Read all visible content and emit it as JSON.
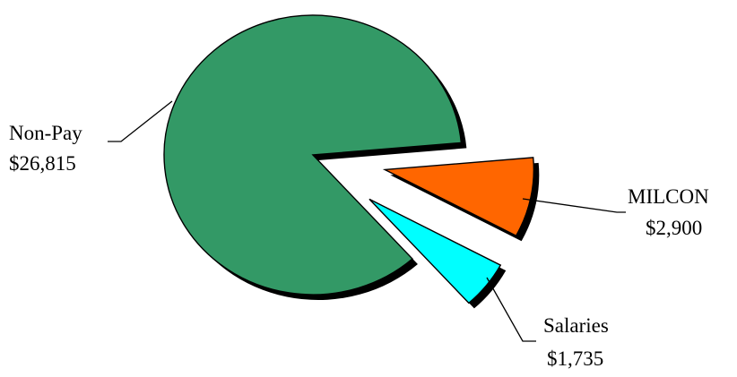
{
  "chart_data": {
    "type": "pie",
    "exploded": true,
    "shadow": true,
    "slices": [
      {
        "label": "Non-Pay",
        "value_text": "$26,815",
        "value": 26815,
        "color": "#339966"
      },
      {
        "label": "MILCON",
        "value_text": "$2,900",
        "value": 2900,
        "color": "#ff6600"
      },
      {
        "label": "Salaries",
        "value_text": "$1,735",
        "value": 1735,
        "color": "#00ffff"
      }
    ]
  }
}
